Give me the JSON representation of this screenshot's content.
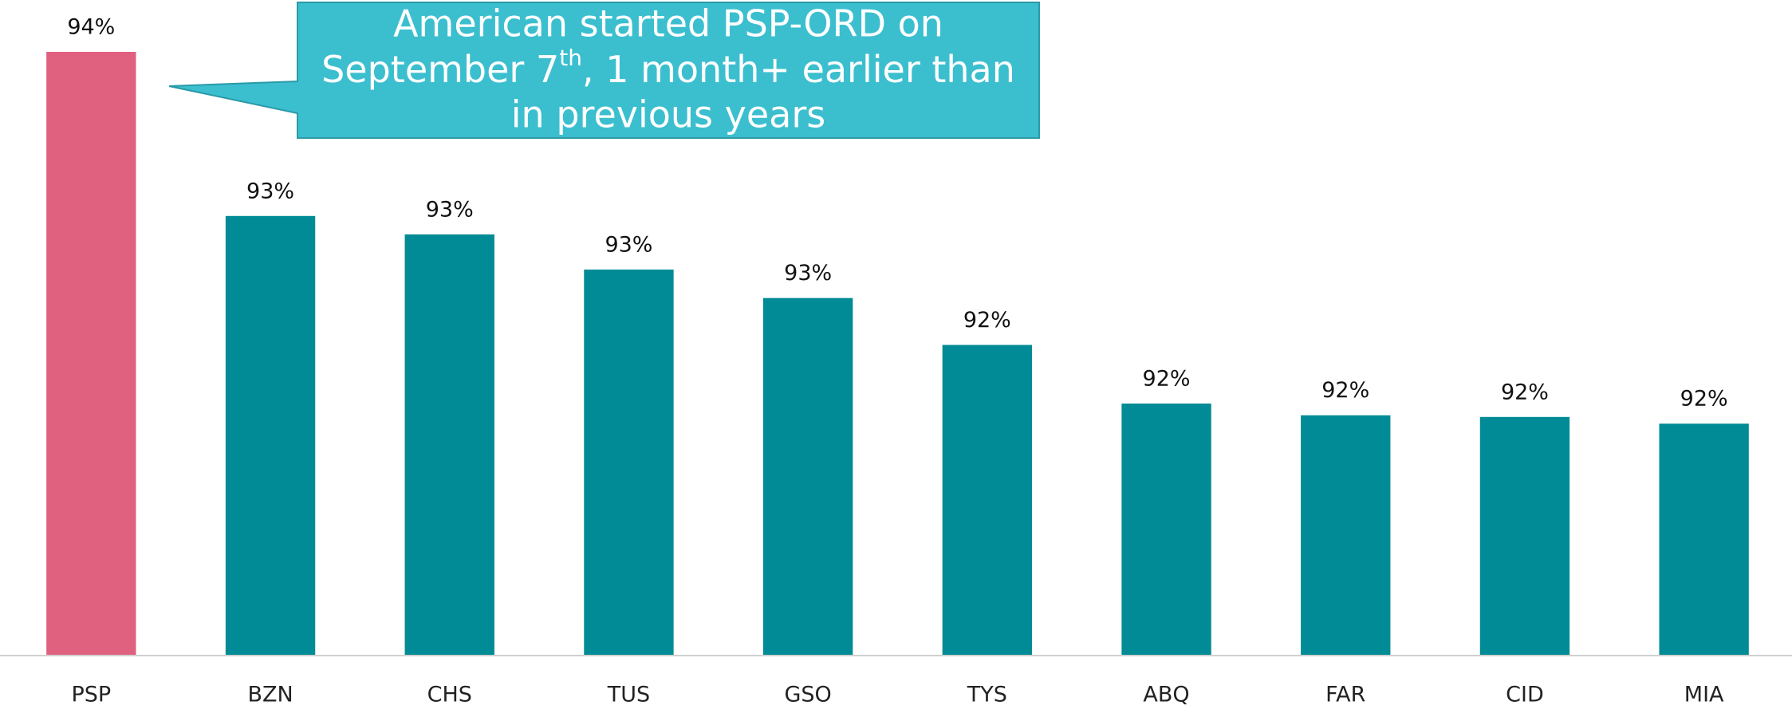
{
  "chart_data": {
    "type": "bar",
    "categories": [
      "PSP",
      "BZN",
      "CHS",
      "TUS",
      "GSO",
      "TYS",
      "ABQ",
      "FAR",
      "CID",
      "MIA"
    ],
    "values": [
      94.1,
      93.12,
      93.01,
      92.8,
      92.63,
      92.35,
      92.0,
      91.93,
      91.92,
      91.88
    ],
    "value_labels": [
      "94%",
      "93%",
      "93%",
      "93%",
      "93%",
      "92%",
      "92%",
      "92%",
      "92%",
      "92%"
    ],
    "colors": [
      "#e06080",
      "#008b96",
      "#008b96",
      "#008b96",
      "#008b96",
      "#008b96",
      "#008b96",
      "#008b96",
      "#008b96",
      "#008b96"
    ],
    "ylim": [
      90.5,
      94.2
    ],
    "annotation": {
      "line1": "American started PSP-ORD on",
      "line2": [
        "September 7",
        "th",
        ", 1 month+ earlier than"
      ],
      "line3": "in previous years"
    }
  }
}
